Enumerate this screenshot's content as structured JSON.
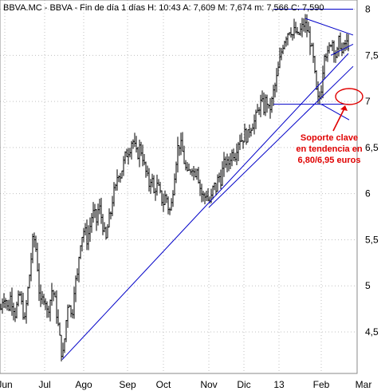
{
  "chart_data": {
    "type": "ohlc",
    "title": "BBVA.MC - BBVA - Fin de día 1 días  H: 10:43  A: 7,609  M: 7,674  m: 7,566  C: 7,590",
    "y_ticks": [
      "4,5",
      "5",
      "5,5",
      "6",
      "6,5",
      "7",
      "7,5",
      "8"
    ],
    "y_tick_values": [
      4.5,
      5,
      5.5,
      6,
      6.5,
      7,
      7.5,
      8
    ],
    "ylim": [
      4.05,
      8.1
    ],
    "x_ticks": [
      "Jun",
      "Jul",
      "Ago",
      "Sep",
      "Oct",
      "Nov",
      "Dic",
      "13",
      "Feb",
      "Mar"
    ],
    "grid": true,
    "colors": {
      "price": "#000000",
      "trendline": "#0000c8",
      "annotation": "#e00000",
      "grid": "#c0c0c0"
    },
    "price_path": [
      [
        0,
        4.75
      ],
      [
        3,
        4.9
      ],
      [
        6,
        4.85
      ],
      [
        9,
        4.72
      ],
      [
        12,
        4.88
      ],
      [
        15,
        4.8
      ],
      [
        18,
        4.7
      ],
      [
        21,
        4.82
      ],
      [
        24,
        4.9
      ],
      [
        27,
        4.75
      ],
      [
        30,
        4.62
      ],
      [
        33,
        4.88
      ],
      [
        36,
        5.12
      ],
      [
        38,
        5.3
      ],
      [
        40,
        5.48
      ],
      [
        42,
        5.5
      ],
      [
        44,
        5.4
      ],
      [
        46,
        5.2
      ],
      [
        48,
        4.95
      ],
      [
        50,
        4.8
      ],
      [
        52,
        4.85
      ],
      [
        55,
        4.9
      ],
      [
        58,
        4.72
      ],
      [
        61,
        4.8
      ],
      [
        64,
        4.95
      ],
      [
        67,
        4.9
      ],
      [
        70,
        4.7
      ],
      [
        73,
        4.5
      ],
      [
        75,
        4.35
      ],
      [
        77,
        4.22
      ],
      [
        79,
        4.3
      ],
      [
        81,
        4.55
      ],
      [
        83,
        4.7
      ],
      [
        85,
        4.9
      ],
      [
        87,
        4.75
      ],
      [
        89,
        4.62
      ],
      [
        91,
        4.85
      ],
      [
        93,
        5.1
      ],
      [
        95,
        5.0
      ],
      [
        97,
        5.2
      ],
      [
        99,
        5.45
      ],
      [
        102,
        5.55
      ],
      [
        105,
        5.62
      ],
      [
        108,
        5.5
      ],
      [
        111,
        5.6
      ],
      [
        114,
        5.75
      ],
      [
        117,
        5.8
      ],
      [
        120,
        5.7
      ],
      [
        123,
        5.88
      ],
      [
        126,
        5.75
      ],
      [
        129,
        5.6
      ],
      [
        132,
        5.5
      ],
      [
        135,
        5.7
      ],
      [
        138,
        5.8
      ],
      [
        141,
        6.0
      ],
      [
        144,
        6.05
      ],
      [
        147,
        6.25
      ],
      [
        150,
        6.2
      ],
      [
        153,
        6.3
      ],
      [
        156,
        6.4
      ],
      [
        159,
        6.45
      ],
      [
        162,
        6.5
      ],
      [
        165,
        6.6
      ],
      [
        168,
        6.5
      ],
      [
        171,
        6.4
      ],
      [
        174,
        6.5
      ],
      [
        177,
        6.45
      ],
      [
        180,
        6.3
      ],
      [
        183,
        6.2
      ],
      [
        186,
        6.1
      ],
      [
        189,
        6.2
      ],
      [
        192,
        6.0
      ],
      [
        195,
        6.1
      ],
      [
        198,
        6.05
      ],
      [
        201,
        5.95
      ],
      [
        204,
        5.9
      ],
      [
        207,
        6.0
      ],
      [
        210,
        5.85
      ],
      [
        213,
        5.8
      ],
      [
        216,
        6.05
      ],
      [
        219,
        6.3
      ],
      [
        222,
        6.5
      ],
      [
        225,
        6.55
      ],
      [
        228,
        6.45
      ],
      [
        231,
        6.3
      ],
      [
        234,
        6.2
      ],
      [
        237,
        6.25
      ],
      [
        240,
        6.3
      ],
      [
        243,
        6.2
      ],
      [
        246,
        6.3
      ],
      [
        249,
        6.1
      ],
      [
        252,
        6.0
      ],
      [
        255,
        5.95
      ],
      [
        258,
        6.0
      ],
      [
        261,
        5.9
      ],
      [
        264,
        5.95
      ],
      [
        267,
        6.1
      ],
      [
        270,
        6.05
      ],
      [
        273,
        6.2
      ],
      [
        276,
        6.15
      ],
      [
        279,
        6.3
      ],
      [
        282,
        6.35
      ],
      [
        285,
        6.3
      ],
      [
        288,
        6.4
      ],
      [
        291,
        6.45
      ],
      [
        294,
        6.42
      ],
      [
        297,
        6.55
      ],
      [
        300,
        6.6
      ],
      [
        303,
        6.58
      ],
      [
        306,
        6.65
      ],
      [
        309,
        6.6
      ],
      [
        312,
        6.7
      ],
      [
        315,
        6.75
      ],
      [
        318,
        6.78
      ],
      [
        321,
        6.85
      ],
      [
        324,
        6.95
      ],
      [
        327,
        7.0
      ],
      [
        330,
        6.92
      ],
      [
        333,
        7.05
      ],
      [
        336,
        6.9
      ],
      [
        339,
        6.95
      ],
      [
        342,
        7.1
      ],
      [
        345,
        7.2
      ],
      [
        348,
        7.35
      ],
      [
        351,
        7.5
      ],
      [
        354,
        7.62
      ],
      [
        357,
        7.7
      ],
      [
        360,
        7.75
      ],
      [
        363,
        7.8
      ],
      [
        366,
        7.72
      ],
      [
        369,
        7.78
      ],
      [
        372,
        7.7
      ],
      [
        375,
        7.75
      ],
      [
        378,
        7.8
      ],
      [
        381,
        7.85
      ],
      [
        384,
        7.78
      ],
      [
        387,
        7.7
      ],
      [
        390,
        7.55
      ],
      [
        393,
        7.4
      ],
      [
        395,
        7.15
      ],
      [
        397,
        7.05
      ],
      [
        399,
        6.98
      ],
      [
        401,
        7.1
      ],
      [
        403,
        7.2
      ],
      [
        405,
        7.5
      ],
      [
        407,
        7.6
      ],
      [
        409,
        7.45
      ],
      [
        411,
        7.55
      ],
      [
        413,
        7.6
      ],
      [
        415,
        7.7
      ],
      [
        417,
        7.6
      ],
      [
        419,
        7.55
      ],
      [
        421,
        7.45
      ],
      [
        423,
        7.6
      ],
      [
        425,
        7.7
      ],
      [
        427,
        7.55
      ],
      [
        429,
        7.5
      ],
      [
        431,
        7.65
      ],
      [
        433,
        7.6
      ],
      [
        435,
        7.65
      ],
      [
        437,
        7.59
      ]
    ],
    "trendlines": [
      {
        "from": [
          78,
          4.2
        ],
        "to": [
          437,
          7.52
        ]
      },
      {
        "from": [
          262,
          5.85
        ],
        "to": [
          443,
          7.38
        ]
      },
      {
        "from": [
          343,
          8.0
        ],
        "to": [
          443,
          8.0
        ]
      },
      {
        "from": [
          383,
          7.9
        ],
        "to": [
          443,
          7.72
        ]
      },
      {
        "from": [
          415,
          7.5
        ],
        "to": [
          443,
          7.62
        ]
      },
      {
        "from": [
          343,
          6.97
        ],
        "to": [
          437,
          6.97
        ]
      },
      {
        "from": [
          403,
          6.97
        ],
        "to": [
          438,
          6.8
        ]
      }
    ],
    "annotation": {
      "lines": [
        "Soporte clave",
        "en tendencia en",
        "6,80/6,95 euros"
      ]
    }
  }
}
